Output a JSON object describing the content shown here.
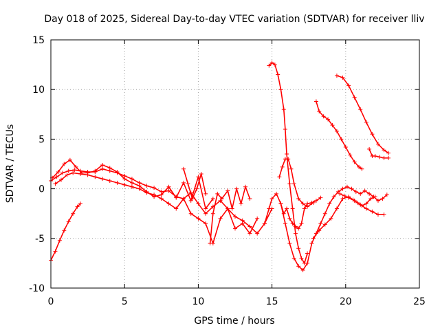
{
  "chart_data": {
    "type": "scatter",
    "title": "Day 018 of 2025, Sidereal Day-to-day VTEC variation (SDTVAR) for receiver lliv",
    "xlabel": "GPS time / hours",
    "ylabel": "SDTVAR / TECUs",
    "xlim": [
      0,
      25
    ],
    "ylim": [
      -10,
      15
    ],
    "xticks": [
      "0",
      "5",
      "10",
      "15",
      "20",
      "25"
    ],
    "yticks": [
      "-10",
      "-5",
      "0",
      "5",
      "10",
      "15"
    ],
    "grid": true,
    "marker": "+",
    "color": "#ff0000",
    "series": [
      {
        "name": "s1",
        "x": [
          0.0,
          0.3,
          0.6,
          0.9,
          1.2,
          1.5,
          1.8,
          2.0
        ],
        "y": [
          -7.2,
          -6.3,
          -5.2,
          -4.2,
          -3.3,
          -2.5,
          -1.8,
          -1.5
        ]
      },
      {
        "name": "s2",
        "x": [
          0.0,
          0.4,
          0.8,
          1.2,
          1.6,
          2.0,
          2.5,
          3.0,
          3.5,
          4.0,
          4.5,
          5.0,
          5.5,
          6.0,
          6.5,
          7.0,
          7.5,
          8.0,
          8.5,
          9.0,
          9.5,
          10.0,
          10.5,
          11.0,
          11.5,
          12.0,
          12.5,
          13.0,
          13.5,
          14.0,
          14.5,
          15.0
        ],
        "y": [
          0.8,
          1.2,
          1.6,
          1.8,
          1.9,
          1.8,
          1.7,
          1.7,
          2.0,
          1.8,
          1.6,
          1.3,
          1.0,
          0.6,
          0.3,
          0.1,
          -0.3,
          -0.2,
          -0.8,
          -1.0,
          -0.4,
          -1.5,
          -2.5,
          -1.8,
          -1.2,
          -2.0,
          -2.8,
          -3.2,
          -3.8,
          -4.5,
          -3.5,
          -2.0
        ]
      },
      {
        "name": "s3",
        "x": [
          0.1,
          0.5,
          0.9,
          1.3,
          1.7,
          2.1,
          2.5,
          3.0,
          3.5,
          4.0,
          4.5,
          5.0,
          5.5,
          6.0,
          6.5,
          7.0,
          7.5,
          8.0,
          8.5,
          9.0,
          9.5,
          10.0,
          10.5,
          11.0
        ],
        "y": [
          1.1,
          1.7,
          2.5,
          2.9,
          2.2,
          1.6,
          1.6,
          1.8,
          2.4,
          2.1,
          1.7,
          1.0,
          0.6,
          0.3,
          -0.3,
          -0.8,
          -0.6,
          0.2,
          -0.9,
          0.6,
          -1.2,
          1.2,
          -2.0,
          -1.0
        ]
      },
      {
        "name": "s4",
        "x": [
          0.3,
          0.7,
          1.1,
          1.5,
          2.0,
          2.5,
          3.0,
          3.5,
          4.0,
          4.5,
          5.0,
          5.5,
          6.0,
          6.5,
          7.0,
          7.5,
          8.0,
          8.5,
          9.0,
          9.5,
          10.0,
          10.5,
          11.0,
          11.5,
          12.0,
          12.5,
          13.0,
          13.5,
          14.0
        ],
        "y": [
          0.5,
          0.9,
          1.4,
          1.6,
          1.5,
          1.4,
          1.2,
          1.0,
          0.8,
          0.6,
          0.4,
          0.2,
          0.0,
          -0.4,
          -0.6,
          -1.0,
          -1.5,
          -2.0,
          -1.0,
          -2.5,
          -3.0,
          -3.5,
          -5.5,
          -3.0,
          -2.0,
          -4.0,
          -3.5,
          -4.5,
          -3.0
        ]
      },
      {
        "name": "s5",
        "x": [
          10.8,
          11.0,
          11.3,
          11.6,
          12.0,
          12.3,
          12.6,
          12.9,
          13.2,
          13.5
        ],
        "y": [
          -5.5,
          -2.5,
          -0.5,
          -1.0,
          -0.2,
          -2.0,
          0.0,
          -1.5,
          0.2,
          -1.0
        ]
      },
      {
        "name": "s6",
        "x": [
          9.0,
          9.3,
          9.6,
          9.9,
          10.2,
          10.5
        ],
        "y": [
          2.0,
          0.5,
          -1.0,
          0.0,
          1.5,
          -0.5
        ]
      },
      {
        "name": "s7",
        "x": [
          14.8,
          15.0,
          15.2,
          15.4,
          15.6,
          15.8,
          15.9,
          16.0,
          16.2,
          16.4,
          16.6,
          16.8,
          17.0,
          17.2,
          17.4
        ],
        "y": [
          12.4,
          12.7,
          12.5,
          11.5,
          10.0,
          8.0,
          6.0,
          3.5,
          0.5,
          -2.0,
          -4.5,
          -6.0,
          -7.0,
          -7.5,
          -6.5
        ]
      },
      {
        "name": "s8",
        "x": [
          14.5,
          14.8,
          15.0,
          15.3,
          15.6,
          15.9,
          16.2,
          16.5,
          16.8,
          17.1,
          17.4,
          17.7,
          18.0,
          18.3,
          18.6,
          18.9,
          19.2,
          19.5,
          19.8,
          20.1,
          20.4,
          20.7,
          21.0,
          21.3,
          21.6,
          21.9,
          22.2,
          22.5,
          22.8
        ],
        "y": [
          -3.5,
          -2.0,
          -1.0,
          -0.5,
          -1.5,
          -3.5,
          -5.5,
          -7.0,
          -7.8,
          -8.2,
          -7.5,
          -5.5,
          -4.5,
          -3.5,
          -2.5,
          -1.5,
          -0.8,
          -0.3,
          0.0,
          0.2,
          0.0,
          -0.3,
          -0.5,
          -0.2,
          -0.5,
          -0.8,
          -1.2,
          -1.0,
          -0.6
        ]
      },
      {
        "name": "s9",
        "x": [
          15.5,
          15.7,
          15.9,
          16.1,
          16.3,
          16.5,
          16.8,
          17.1,
          17.4,
          17.8
        ],
        "y": [
          1.2,
          2.2,
          3.0,
          3.0,
          2.0,
          0.5,
          -1.0,
          -1.5,
          -1.8,
          -1.4
        ]
      },
      {
        "name": "s10",
        "x": [
          15.6,
          15.8,
          16.0,
          16.2,
          16.4,
          16.6,
          16.8,
          17.0,
          17.2,
          17.4,
          17.7,
          18.0,
          18.3
        ],
        "y": [
          -1.5,
          -2.5,
          -2.0,
          -3.0,
          -3.5,
          -3.8,
          -4.0,
          -3.5,
          -2.0,
          -1.5,
          -1.4,
          -1.2,
          -0.9
        ]
      },
      {
        "name": "s11",
        "x": [
          17.8,
          18.2,
          18.6,
          19.0,
          19.4,
          19.8,
          20.2,
          20.6,
          21.0,
          21.4,
          21.8,
          22.2,
          22.6
        ],
        "y": [
          -5.0,
          -4.2,
          -3.6,
          -3.0,
          -2.0,
          -1.0,
          -0.8,
          -1.2,
          -1.6,
          -2.0,
          -2.3,
          -2.6,
          -2.6
        ]
      },
      {
        "name": "s12",
        "x": [
          18.0,
          18.2,
          18.5,
          18.8,
          19.1,
          19.4,
          19.7,
          20.0,
          20.3,
          20.6,
          20.9,
          21.1
        ],
        "y": [
          8.8,
          7.8,
          7.3,
          7.0,
          6.4,
          5.8,
          5.0,
          4.2,
          3.4,
          2.7,
          2.2,
          2.0
        ]
      },
      {
        "name": "s13",
        "x": [
          19.4,
          19.8,
          20.2,
          20.6,
          21.0,
          21.4,
          21.8,
          22.2,
          22.6,
          22.9
        ],
        "y": [
          11.4,
          11.2,
          10.4,
          9.2,
          8.0,
          6.7,
          5.5,
          4.5,
          3.9,
          3.6
        ]
      },
      {
        "name": "s14",
        "x": [
          21.6,
          21.8,
          22.0,
          22.3,
          22.6,
          22.9
        ],
        "y": [
          4.0,
          3.3,
          3.3,
          3.2,
          3.1,
          3.1
        ]
      },
      {
        "name": "s15",
        "x": [
          19.6,
          19.9,
          20.2,
          20.5,
          20.8,
          21.1,
          21.4,
          21.7,
          22.0
        ],
        "y": [
          -0.5,
          -0.7,
          -0.9,
          -1.1,
          -1.4,
          -1.7,
          -1.5,
          -1.0,
          -0.8
        ]
      }
    ]
  }
}
